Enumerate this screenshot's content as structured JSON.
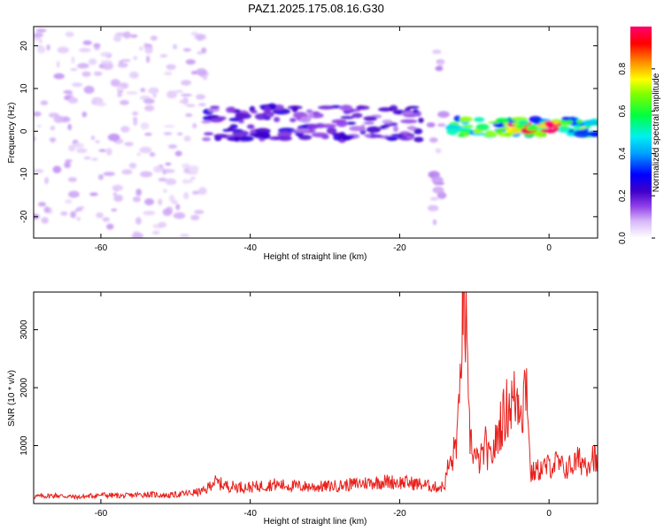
{
  "title": "PAZ1.2025.175.08.16.G30",
  "chart_data": [
    {
      "type": "heatmap",
      "xlabel": "Height of straight line (km)",
      "ylabel": "Frequency (Hz)",
      "xlim": [
        -69,
        6.5
      ],
      "ylim": [
        -25,
        24.5
      ],
      "xticks": [
        -60,
        -40,
        -20,
        0
      ],
      "yticks": [
        -20,
        -10,
        0,
        10,
        20
      ],
      "colorbar": {
        "label": "Normalized spectral amplitude",
        "range": [
          0,
          1
        ],
        "ticks": [
          0.0,
          0.2,
          0.4,
          0.6,
          0.8
        ],
        "tick_labels": [
          "0.0",
          "0.2",
          "0.4",
          "0.6",
          "0.8"
        ],
        "colormap": [
          "#ffffff",
          "#b070f0",
          "#5000d0",
          "#0000ff",
          "#00e0ff",
          "#00ff00",
          "#ffff00",
          "#ff8000",
          "#ff0000",
          "#ff0080"
        ]
      },
      "features": [
        {
          "x_range": [
            -69,
            -46
          ],
          "f_range": [
            -25,
            24
          ],
          "amplitude": 0.08,
          "description_level": "diffuse low"
        },
        {
          "x_range": [
            -46,
            -17
          ],
          "f_center": 2,
          "f_halfwidth": 4,
          "amplitude": 0.2
        },
        {
          "x_range": [
            -16,
            -14
          ],
          "f_range": [
            -25,
            24
          ],
          "amplitude": 0.1
        },
        {
          "x_range": [
            -13,
            6.5
          ],
          "f_center": 1,
          "f_halfwidth": 2,
          "amplitude": 0.55
        },
        {
          "x_range": [
            -5,
            -2
          ],
          "f_center": 1,
          "f_halfwidth": 1,
          "amplitude": 0.9
        },
        {
          "x_range": [
            -1,
            1
          ],
          "f_center": 1,
          "f_halfwidth": 1,
          "amplitude": 0.85
        }
      ]
    },
    {
      "type": "line",
      "xlabel": "Height of straight line (km)",
      "ylabel": "SNR (10 * v/v)",
      "xlim": [
        -69,
        6.5
      ],
      "ylim": [
        0,
        3650
      ],
      "xticks": [
        -60,
        -40,
        -20,
        0
      ],
      "yticks": [
        1000,
        2000,
        3000
      ],
      "color": "#e8201c",
      "x": [
        -69,
        -66,
        -63,
        -60,
        -57,
        -54,
        -51,
        -48,
        -46,
        -45,
        -43,
        -40,
        -37,
        -34,
        -31,
        -28,
        -25,
        -22,
        -19,
        -17,
        -15,
        -14,
        -13.5,
        -13,
        -12.5,
        -12,
        -11.8,
        -11.5,
        -11.2,
        -11,
        -10.8,
        -10.5,
        -10,
        -9.5,
        -9,
        -8.5,
        -8,
        -7.5,
        -7,
        -6.5,
        -6,
        -5.5,
        -5,
        -4.5,
        -4,
        -3.5,
        -3.2,
        -3,
        -2.8,
        -2.6,
        -2.4,
        -2,
        -1,
        0,
        1,
        2,
        3,
        4,
        5,
        6,
        6.5
      ],
      "y": [
        120,
        140,
        110,
        150,
        130,
        160,
        140,
        180,
        220,
        380,
        300,
        280,
        330,
        300,
        290,
        310,
        350,
        380,
        360,
        330,
        280,
        300,
        650,
        700,
        1050,
        1500,
        2700,
        3650,
        3200,
        2500,
        1400,
        1100,
        850,
        700,
        800,
        1000,
        750,
        900,
        1100,
        1400,
        1500,
        1700,
        1750,
        1800,
        1850,
        1700,
        2100,
        2200,
        1700,
        800,
        500,
        550,
        600,
        650,
        700,
        600,
        650,
        750,
        700,
        850,
        550
      ]
    }
  ]
}
